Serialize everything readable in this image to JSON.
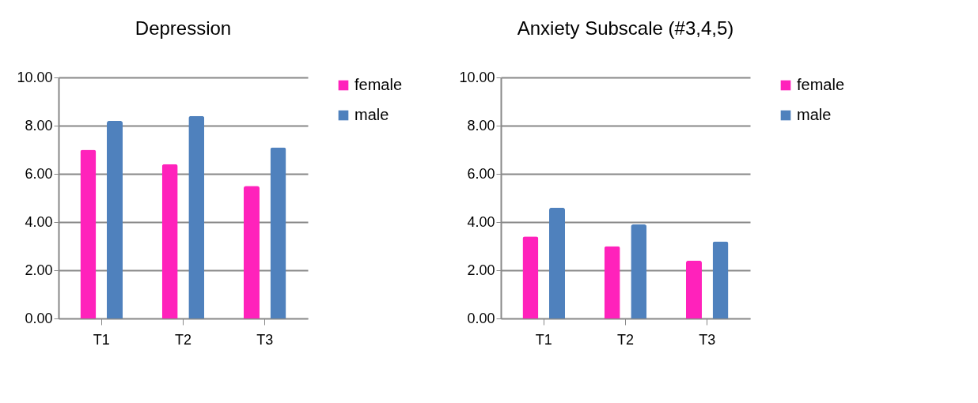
{
  "chart_data": [
    {
      "type": "bar",
      "title": "Depression",
      "categories": [
        "T1",
        "T2",
        "T3"
      ],
      "series": [
        {
          "name": "female",
          "color": "#ff22bb",
          "values": [
            7.0,
            6.4,
            5.5
          ]
        },
        {
          "name": "male",
          "color": "#4f81bd",
          "values": [
            8.2,
            8.4,
            7.1
          ]
        }
      ],
      "ylim": [
        0,
        10
      ],
      "yticks": [
        {
          "value": 0,
          "label": "0.00"
        },
        {
          "value": 2,
          "label": "2.00"
        },
        {
          "value": 4,
          "label": "4.00"
        },
        {
          "value": 6,
          "label": "6.00"
        },
        {
          "value": 8,
          "label": "8.00"
        },
        {
          "value": 10,
          "label": "10.00"
        }
      ],
      "grid": "y",
      "legend": "right"
    },
    {
      "type": "bar",
      "title": "Anxiety Subscale (#3,4,5)",
      "categories": [
        "T1",
        "T2",
        "T3"
      ],
      "series": [
        {
          "name": "female",
          "color": "#ff22bb",
          "values": [
            3.4,
            3.0,
            2.4
          ]
        },
        {
          "name": "male",
          "color": "#4f81bd",
          "values": [
            4.6,
            3.9,
            3.2
          ]
        }
      ],
      "ylim": [
        0,
        10
      ],
      "yticks": [
        {
          "value": 0,
          "label": "0.00"
        },
        {
          "value": 2,
          "label": "2.00"
        },
        {
          "value": 4,
          "label": "4.00"
        },
        {
          "value": 6,
          "label": "6.00"
        },
        {
          "value": 8,
          "label": "8.00"
        },
        {
          "value": 10,
          "label": "10.00"
        }
      ],
      "grid": "y",
      "legend": "right"
    }
  ]
}
